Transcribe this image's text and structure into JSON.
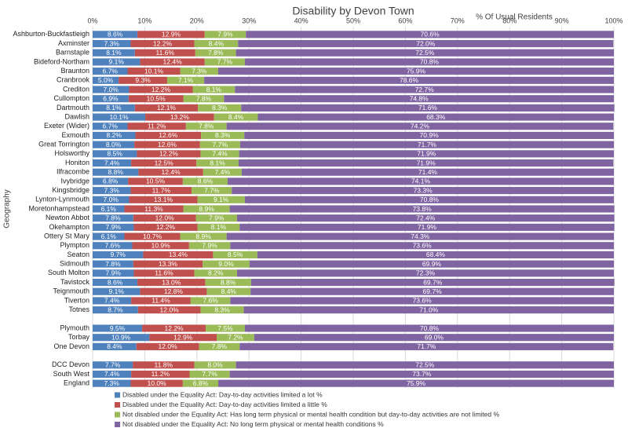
{
  "chart_data": {
    "type": "stacked-bar-horizontal",
    "title": "Disability by Devon Town",
    "x_label": "% Of Usual Residents",
    "y_label": "Geography",
    "xlim": [
      0,
      100
    ],
    "xticks": [
      {
        "value": 0,
        "label": "0%"
      },
      {
        "value": 10,
        "label": "10%"
      },
      {
        "value": 20,
        "label": "20%"
      },
      {
        "value": 30,
        "label": "30%"
      },
      {
        "value": 40,
        "label": "40%"
      },
      {
        "value": 50,
        "label": "50%"
      },
      {
        "value": 60,
        "label": "60%"
      },
      {
        "value": 70,
        "label": "70%"
      },
      {
        "value": 80,
        "label": "80%"
      },
      {
        "value": 90,
        "label": "90%"
      },
      {
        "value": 100,
        "label": "100%"
      }
    ],
    "grid": true,
    "legend": "bottom",
    "categories": [
      "Ashburton-Buckfastleigh",
      "Axminster",
      "Barnstaple",
      "Bideford-Northam",
      "Braunton",
      "Cranbrook",
      "Crediton",
      "Cullompton",
      "Dartmouth",
      "Dawlish",
      "Exeter (Wider)",
      "Exmouth",
      "Great Torrington",
      "Holsworthy",
      "Honiton",
      "Ilfracombe",
      "Ivybridge",
      "Kingsbridge",
      "Lynton-Lynmouth",
      "Moretonhampstead",
      "Newton Abbot",
      "Okehampton",
      "Ottery St Mary",
      "Plympton",
      "Seaton",
      "Sidmouth",
      "South Molton",
      "Tavistock",
      "Teignmouth",
      "Tiverton",
      "Totnes",
      null,
      "Plymouth",
      "Torbay",
      "One Devon",
      null,
      "DCC Devon",
      "South West",
      "England"
    ],
    "series": [
      {
        "name": "Disabled under the Equality Act: Day-to-day activities limited a lot %",
        "color": "#4f81bd",
        "values": [
          8.6,
          7.3,
          8.1,
          9.1,
          6.7,
          5.0,
          7.0,
          6.9,
          8.1,
          10.1,
          6.7,
          8.2,
          8.0,
          8.5,
          7.4,
          8.8,
          6.8,
          7.3,
          7.0,
          6.1,
          7.8,
          7.9,
          6.1,
          7.6,
          9.7,
          7.8,
          7.9,
          8.6,
          9.1,
          7.4,
          8.7,
          null,
          9.5,
          10.9,
          8.4,
          null,
          7.7,
          7.4,
          7.3
        ],
        "value_labels": [
          "8.6%",
          "7.3%",
          "8.1%",
          "9.1%",
          "6.7%",
          "5.0%",
          "7.0%",
          "6.9%",
          "8.1%",
          "10.1%",
          "6.7%",
          "8.2%",
          "8.0%",
          "8.5%",
          "7.4%",
          "8.8%",
          "6.8%",
          "7.3%",
          "7.0%",
          "6.1%",
          "7.8%",
          "7.9%",
          "6.1%",
          "7.6%",
          "9.7%",
          "7.8%",
          "7.9%",
          "8.6%",
          "9.1%",
          "7.4%",
          "8.7%",
          null,
          "9.5%",
          "10.9%",
          "8.4%",
          null,
          "7.7%",
          "7.4%",
          "7.3%"
        ]
      },
      {
        "name": "Disabled under the Equality Act: Day-to-day activities limited a little %",
        "color": "#c0504d",
        "values": [
          12.9,
          12.2,
          11.6,
          12.4,
          10.1,
          9.3,
          12.2,
          10.5,
          12.1,
          13.2,
          11.2,
          12.6,
          12.6,
          12.2,
          12.5,
          12.4,
          10.5,
          11.7,
          13.1,
          11.3,
          12.0,
          12.2,
          10.7,
          10.9,
          13.4,
          13.3,
          11.6,
          13.0,
          12.8,
          11.4,
          12.0,
          null,
          12.2,
          12.9,
          12.0,
          null,
          11.8,
          11.2,
          10.0
        ],
        "value_labels": [
          "12.9%",
          "12.2%",
          "11.6%",
          "12.4%",
          "10.1%",
          "9.3%",
          "12.2%",
          "10.5%",
          "12.1%",
          "13.2%",
          "11.2%",
          "12.6%",
          "12.6%",
          "12.2%",
          "12.5%",
          "12.4%",
          "10.5%",
          "11.7%",
          "13.1%",
          "11.3%",
          "12.0%",
          "12.2%",
          "10.7%",
          "10.9%",
          "13.4%",
          "13.3%",
          "11.6%",
          "13.0%",
          "12.8%",
          "11.4%",
          "12.0%",
          null,
          "12.2%",
          "12.9%",
          "12.0%",
          null,
          "11.8%",
          "11.2%",
          "10.0%"
        ]
      },
      {
        "name": "Not disabled under the Equality Act: Has long term physical or mental health condition but day-to-day activities are not limited %",
        "color": "#9bbb59",
        "values": [
          7.9,
          8.4,
          7.8,
          7.7,
          7.3,
          7.1,
          8.1,
          7.8,
          8.3,
          8.4,
          7.8,
          8.3,
          7.7,
          7.4,
          8.1,
          7.4,
          8.6,
          7.7,
          9.1,
          8.9,
          7.9,
          8.1,
          8.9,
          7.9,
          8.5,
          9.0,
          8.2,
          8.8,
          8.4,
          7.6,
          8.3,
          null,
          7.5,
          7.2,
          7.8,
          null,
          8.0,
          7.7,
          6.8
        ],
        "value_labels": [
          "7.9%",
          "8.4%",
          "7.8%",
          "7.7%",
          "7.3%",
          "7.1%",
          "8.1%",
          "7.8%",
          "8.3%",
          "8.4%",
          "7.8%",
          "8.3%",
          "7.7%",
          "7.4%",
          "8.1%",
          "7.4%",
          "8.6%",
          "7.7%",
          "9.1%",
          "8.9%",
          "7.9%",
          "8.1%",
          "8.9%",
          "7.9%",
          "8.5%",
          "9.0%",
          "8.2%",
          "8.8%",
          "8.4%",
          "7.6%",
          "8.3%",
          null,
          "7.5%",
          "7.2%",
          "7.8%",
          null,
          "8.0%",
          "7.7%",
          "6.8%"
        ]
      },
      {
        "name": "Not disabled under the Equality Act: No long term physical or mental health conditions %",
        "color": "#8064a2",
        "values": [
          70.6,
          72.0,
          72.5,
          70.8,
          75.9,
          78.6,
          72.7,
          74.8,
          71.6,
          68.3,
          74.2,
          70.9,
          71.7,
          71.9,
          71.9,
          71.4,
          74.1,
          73.3,
          70.8,
          73.8,
          72.4,
          71.9,
          74.3,
          73.6,
          68.4,
          69.9,
          72.3,
          69.7,
          69.7,
          73.6,
          71.0,
          null,
          70.8,
          69.0,
          71.7,
          null,
          72.5,
          73.7,
          75.9
        ],
        "value_labels": [
          "70.6%",
          "72.0%",
          "72.5%",
          "70.8%",
          "75.9%",
          "78.6%",
          "72.7%",
          "74.8%",
          "71.6%",
          "68.3%",
          "74.2%",
          "70.9%",
          "71.7%",
          "71.9%",
          "71.9%",
          "71.4%",
          "74.1%",
          "73.3%",
          "70.8%",
          "73.8%",
          "72.4%",
          "71.9%",
          "74.3%",
          "73.6%",
          "68.4%",
          "69.9%",
          "72.3%",
          "69.7%",
          "69.7%",
          "73.6%",
          "71.0%",
          null,
          "70.8%",
          "69.0%",
          "71.7%",
          null,
          "72.5%",
          "73.7%",
          "75.9%"
        ]
      }
    ]
  }
}
